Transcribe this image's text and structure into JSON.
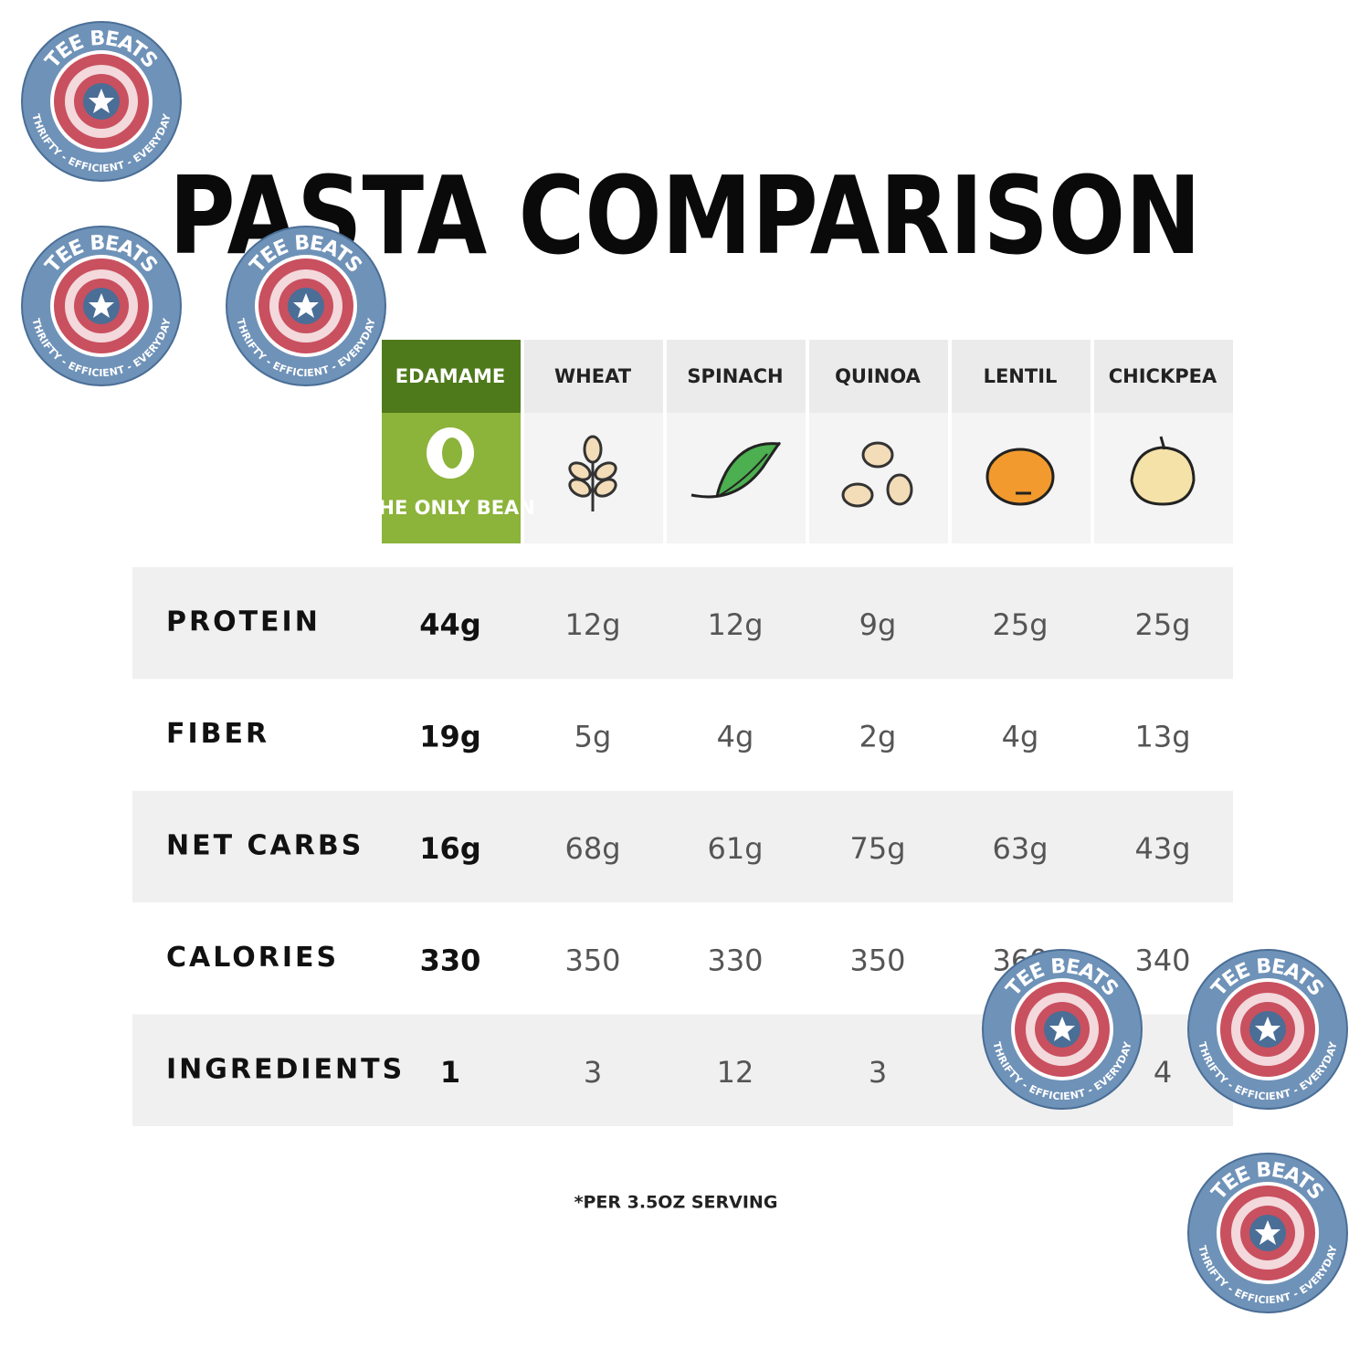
{
  "title": "PASTA COMPARISON",
  "table": {
    "columns": [
      {
        "name": "EDAMAME",
        "badge": "THE ONLY BEAN"
      },
      {
        "name": "WHEAT"
      },
      {
        "name": "SPINACH"
      },
      {
        "name": "QUINOA"
      },
      {
        "name": "LENTIL"
      },
      {
        "name": "CHICKPEA"
      }
    ],
    "rows": [
      {
        "label": "PROTEIN",
        "values": [
          "44g",
          "12g",
          "12g",
          "9g",
          "25g",
          "25g"
        ]
      },
      {
        "label": "FIBER",
        "values": [
          "19g",
          "5g",
          "4g",
          "2g",
          "4g",
          "13g"
        ]
      },
      {
        "label": "NET CARBS",
        "values": [
          "16g",
          "68g",
          "61g",
          "75g",
          "63g",
          "43g"
        ]
      },
      {
        "label": "CALORIES",
        "values": [
          "330",
          "350",
          "330",
          "350",
          "360",
          "340"
        ]
      },
      {
        "label": "INGREDIENTS",
        "values": [
          "1",
          "3",
          "12",
          "3",
          null,
          "4"
        ]
      }
    ]
  },
  "footnote": "*PER 3.5OZ SERVING",
  "watermark": {
    "top_text": "TEE BEATS",
    "bottom_text": "THRIFTY - EFFICIENT - EVERYDAY"
  }
}
